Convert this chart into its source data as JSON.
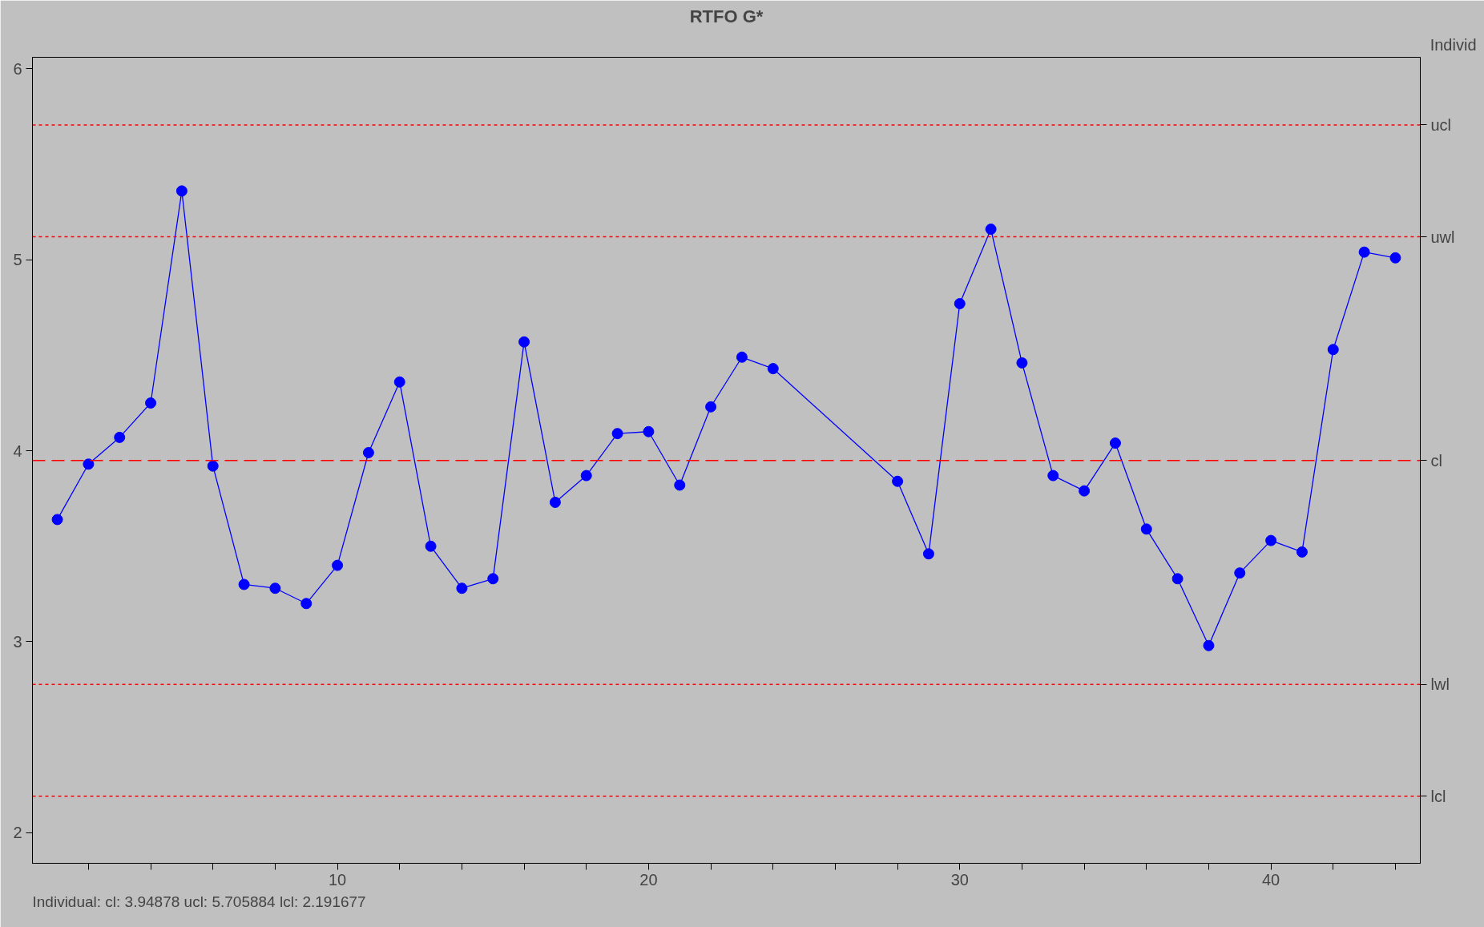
{
  "chart_data": {
    "type": "line",
    "title": "RTFO G*",
    "y2label": "Individ",
    "annotations": [
      "Individual:   cl:   3.94878   ucl:   5.705884   lcl:   2.191677"
    ],
    "x": [
      1,
      2,
      3,
      4,
      5,
      6,
      7,
      8,
      9,
      10,
      11,
      12,
      13,
      14,
      15,
      16,
      17,
      18,
      19,
      20,
      21,
      22,
      23,
      24,
      28,
      29,
      30,
      31,
      32,
      33,
      34,
      35,
      36,
      37,
      38,
      39,
      40,
      41,
      42,
      43,
      44
    ],
    "series": [
      {
        "color": "#0000ff",
        "values": [
          3.64,
          3.93,
          4.07,
          4.25,
          5.36,
          3.92,
          3.3,
          3.28,
          3.2,
          3.4,
          3.99,
          4.36,
          3.5,
          3.28,
          3.33,
          4.57,
          3.73,
          3.87,
          4.09,
          4.1,
          3.82,
          4.23,
          4.49,
          4.43,
          3.84,
          3.46,
          4.77,
          5.16,
          4.46,
          3.87,
          3.79,
          4.04,
          3.59,
          3.33,
          2.98,
          3.36,
          3.53,
          3.47,
          4.53,
          5.04,
          5.01
        ]
      }
    ],
    "xlim": [
      0.2,
      44.8
    ],
    "ylim": [
      1.84,
      6.06
    ],
    "xticks": [
      {
        "value": 2,
        "label": null
      },
      {
        "value": 4,
        "label": null
      },
      {
        "value": 6,
        "label": null
      },
      {
        "value": 8,
        "label": null
      },
      10,
      {
        "value": 12,
        "label": null
      },
      {
        "value": 14,
        "label": null
      },
      {
        "value": 16,
        "label": null
      },
      {
        "value": 18,
        "label": null
      },
      20,
      {
        "value": 22,
        "label": null
      },
      {
        "value": 24,
        "label": null
      },
      {
        "value": 26,
        "label": null
      },
      {
        "value": 28,
        "label": null
      },
      30,
      {
        "value": 32,
        "label": null
      },
      {
        "value": 34,
        "label": null
      },
      {
        "value": 36,
        "label": null
      },
      {
        "value": 38,
        "label": null
      },
      40,
      {
        "value": 42,
        "label": null
      },
      {
        "value": 44,
        "label": null
      }
    ],
    "yticks": [
      2,
      3,
      4,
      5,
      6
    ],
    "ref_lines": [
      {
        "axis": "y",
        "value": 5.705884,
        "label": "ucl",
        "color": "#ff0000",
        "line_style": "dotted"
      },
      {
        "axis": "y",
        "value": 5.12,
        "label": "uwl",
        "color": "#ff0000",
        "line_style": "dotted"
      },
      {
        "axis": "y",
        "value": 3.94878,
        "label": "cl",
        "color": "#ff0000",
        "line_style": "dashed"
      },
      {
        "axis": "y",
        "value": 2.777,
        "label": "lwl",
        "color": "#ff0000",
        "line_style": "dotted"
      },
      {
        "axis": "y",
        "value": 2.191677,
        "label": "lcl",
        "color": "#ff0000",
        "line_style": "dotted"
      }
    ],
    "grid": false,
    "marker": "circle",
    "line_style": "solid"
  }
}
